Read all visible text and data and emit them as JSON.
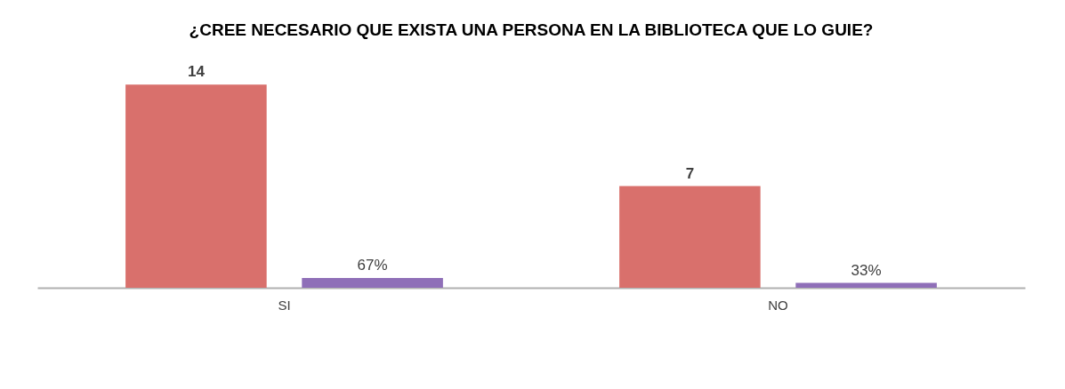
{
  "chart_data": {
    "type": "bar",
    "title": "¿CREE NECESARIO QUE EXISTA UNA PERSONA EN LA BIBLIOTECA QUE LO GUIE?",
    "categories": [
      "SI",
      "NO"
    ],
    "series": [
      {
        "color": "#d9706c",
        "values": [
          14,
          7
        ],
        "value_labels": [
          "14",
          "7"
        ]
      },
      {
        "color": "#8f6fb8",
        "values": [
          0.67,
          0.33
        ],
        "value_labels": [
          "67%",
          "33%"
        ]
      }
    ]
  }
}
